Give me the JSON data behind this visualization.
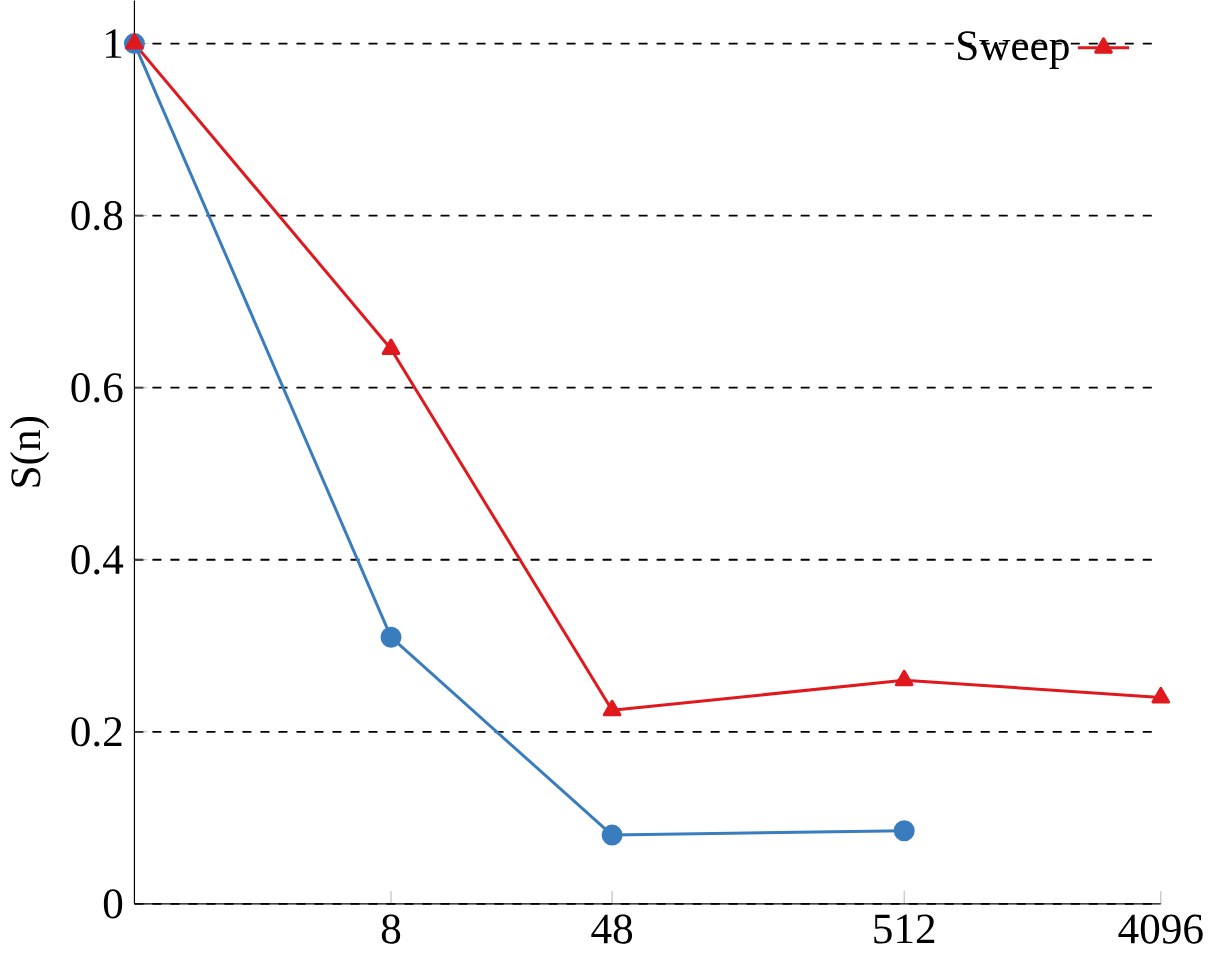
{
  "chart_data": {
    "type": "line",
    "ylabel": "S(n)",
    "log": "x",
    "xlim": [
      1,
      4096
    ],
    "xticks": [
      8,
      48,
      512,
      4096
    ],
    "ylim": [
      0,
      1.05
    ],
    "yticks": [
      0,
      0.2,
      0.4,
      0.6,
      0.8,
      1
    ],
    "grid": "y",
    "legend": "top right",
    "series": [
      {
        "color": "#3a7dbf",
        "marker": "circle",
        "x": [
          1,
          8,
          48,
          512
        ],
        "values": [
          1,
          0.31,
          0.08,
          0.085
        ]
      },
      {
        "name": "Sweep",
        "color": "#e0191e",
        "marker": "triangle",
        "x": [
          1,
          8,
          48,
          512,
          4096
        ],
        "values": [
          1,
          0.645,
          0.225,
          0.26,
          0.24
        ]
      }
    ]
  }
}
